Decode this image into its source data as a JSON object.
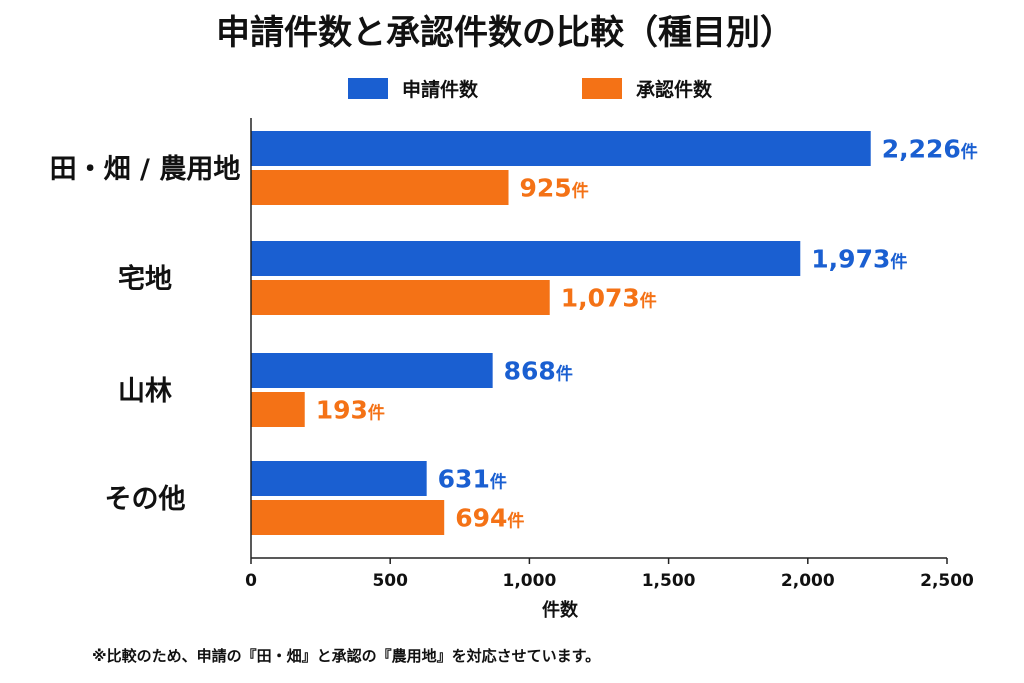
{
  "chart_data": {
    "type": "bar",
    "orientation": "horizontal",
    "title": "申請件数と承認件数の比較（種目別）",
    "categories": [
      "田・畑 / 農用地",
      "宅地",
      "山林",
      "その他"
    ],
    "series": [
      {
        "name": "申請件数",
        "color": "#1a5fd1",
        "values": [
          2226,
          1973,
          868,
          631
        ],
        "labels": [
          "2,226",
          "1,973",
          "868",
          "631"
        ]
      },
      {
        "name": "承認件数",
        "color": "#f47216",
        "values": [
          925,
          1073,
          193,
          694
        ],
        "labels": [
          "925",
          "1,073",
          "193",
          "694"
        ]
      }
    ],
    "unit": "件",
    "xlabel": "件数",
    "xlim": [
      0,
      2500
    ],
    "xticks": [
      0,
      500,
      1000,
      1500,
      2000,
      2500
    ],
    "xtick_labels": [
      "0",
      "500",
      "1,000",
      "1,500",
      "2,000",
      "2,500"
    ],
    "legend_position": "top-center",
    "grid": false
  },
  "footnote": "※比較のため、申請の『田・畑』と承認の『農用地』を対応させています。"
}
